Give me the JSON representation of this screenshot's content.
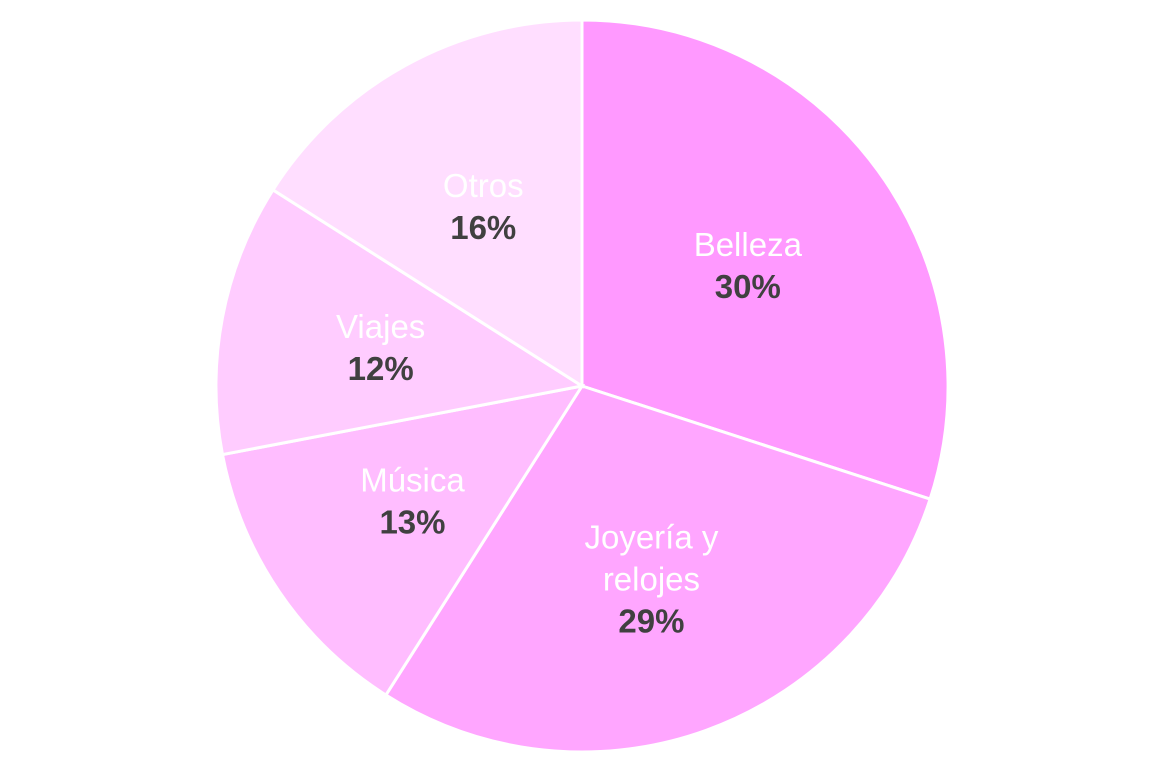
{
  "chart_data": {
    "type": "pie",
    "title": "",
    "start_angle_deg": 0,
    "direction": "clockwise",
    "slices": [
      {
        "label": "Belleza",
        "label_lines": [
          "Belleza"
        ],
        "value": 30,
        "value_label": "30%",
        "color": "#FF99FF"
      },
      {
        "label": "Joyería y relojes",
        "label_lines": [
          "Joyería y",
          "relojes"
        ],
        "value": 29,
        "value_label": "29%",
        "color": "#FFA6FF"
      },
      {
        "label": "Música",
        "label_lines": [
          "Música"
        ],
        "value": 13,
        "value_label": "13%",
        "color": "#FFBDFF"
      },
      {
        "label": "Viajes",
        "label_lines": [
          "Viajes"
        ],
        "value": 12,
        "value_label": "12%",
        "color": "#FFCCFF"
      },
      {
        "label": "Otros",
        "label_lines": [
          "Otros"
        ],
        "value": 16,
        "value_label": "16%",
        "color": "#FFDEFF"
      }
    ],
    "legend": "none"
  }
}
